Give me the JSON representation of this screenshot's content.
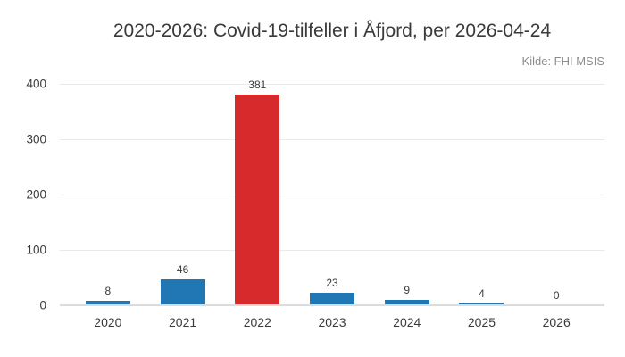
{
  "chart_data": {
    "type": "bar",
    "title": "2020-2026: Covid-19-tilfeller i Åfjord, per 2026-04-24",
    "source": "Kilde: FHI MSIS",
    "categories": [
      "2020",
      "2021",
      "2022",
      "2023",
      "2024",
      "2025",
      "2026"
    ],
    "values": [
      8,
      46,
      381,
      23,
      9,
      4,
      0
    ],
    "bar_labels": [
      "8",
      "46",
      "381",
      "23",
      "9",
      "4",
      "0"
    ],
    "highlight_index": 2,
    "xlabel": "",
    "ylabel": "",
    "yticks": [
      0,
      100,
      200,
      300,
      400
    ],
    "ylim": [
      0,
      400
    ],
    "grid": "horizontal",
    "legend": "none",
    "colors": {
      "bar_default": "#2077b4",
      "bar_highlight": "#d62a2c",
      "gridline": "#eaeaea",
      "baseline": "#dcdcdc",
      "text": "#3a3a3a",
      "muted_text": "#8c8c8c",
      "background": "#ffffff"
    }
  }
}
